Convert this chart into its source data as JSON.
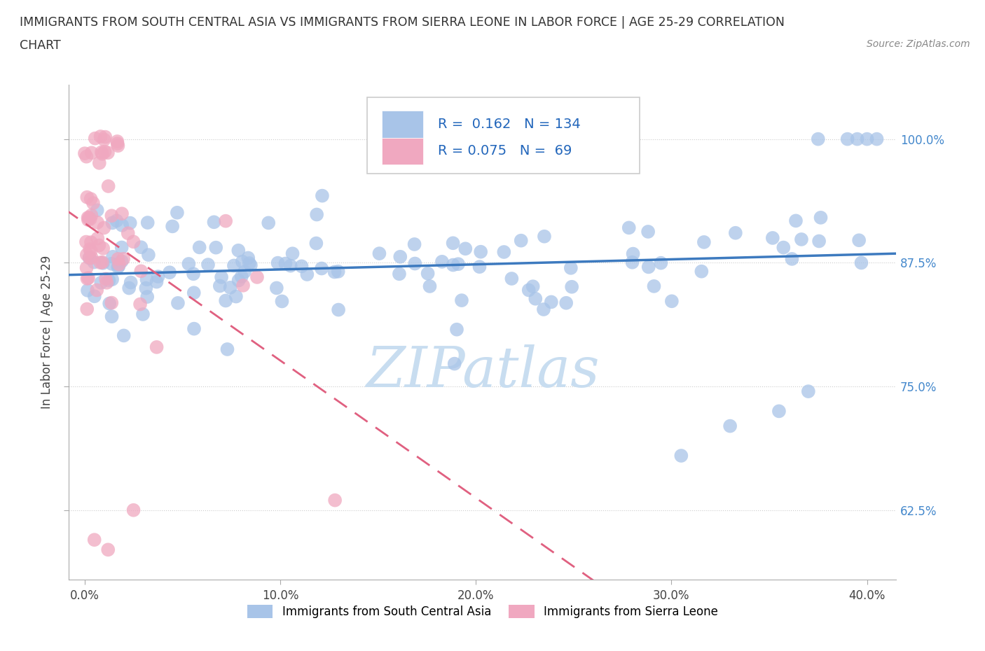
{
  "title_line1": "IMMIGRANTS FROM SOUTH CENTRAL ASIA VS IMMIGRANTS FROM SIERRA LEONE IN LABOR FORCE | AGE 25-29 CORRELATION",
  "title_line2": "CHART",
  "source_text": "Source: ZipAtlas.com",
  "ylabel_label": "In Labor Force | Age 25-29",
  "legend_blue_r": "0.162",
  "legend_blue_n": "134",
  "legend_pink_r": "0.075",
  "legend_pink_n": "69",
  "blue_color": "#a8c4e8",
  "pink_color": "#f0a8c0",
  "blue_line_color": "#3d7abf",
  "pink_line_color": "#e06080",
  "watermark_text": "ZIPatlas",
  "watermark_color": "#c8ddf0",
  "legend_blue_label": "Immigrants from South Central Asia",
  "legend_pink_label": "Immigrants from Sierra Leone",
  "xtick_vals": [
    0.0,
    0.1,
    0.2,
    0.3,
    0.4
  ],
  "xtick_labels": [
    "0.0%",
    "10.0%",
    "20.0%",
    "30.0%",
    "40.0%"
  ],
  "ytick_vals": [
    0.625,
    0.75,
    0.875,
    1.0
  ],
  "ytick_labels": [
    "62.5%",
    "75.0%",
    "87.5%",
    "100.0%"
  ],
  "xlim": [
    -0.008,
    0.415
  ],
  "ylim": [
    0.555,
    1.055
  ]
}
